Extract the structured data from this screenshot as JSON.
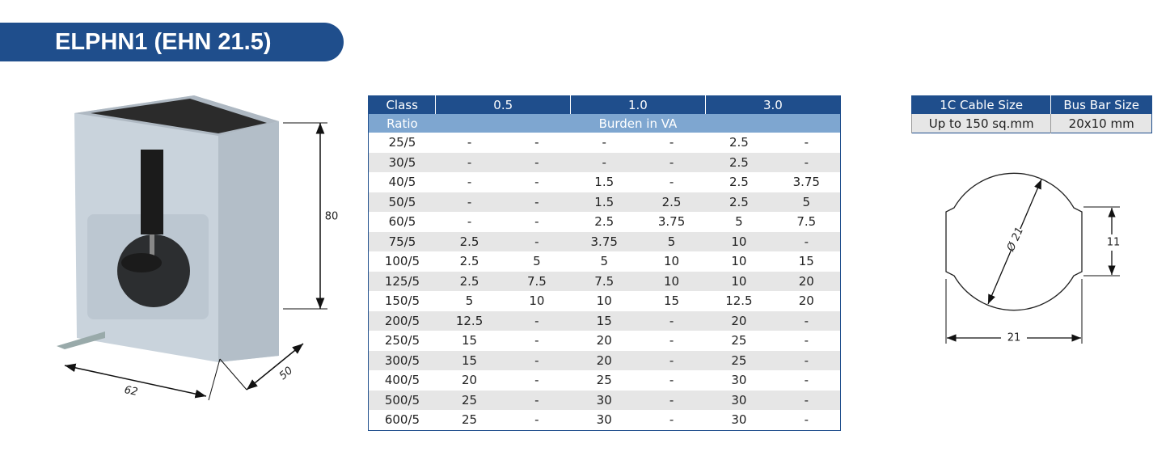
{
  "header": {
    "title": "ELPHN1 (EHN 21.5)"
  },
  "product": {
    "dimensions": {
      "height": "80",
      "width": "62",
      "depth": "50"
    }
  },
  "table": {
    "header": [
      "Class",
      "0.5",
      "1.0",
      "3.0"
    ],
    "subheader": [
      "Ratio",
      "Burden in VA"
    ],
    "rows": [
      [
        "25/5",
        "-",
        "-",
        "-",
        "-",
        "2.5",
        "-"
      ],
      [
        "30/5",
        "-",
        "-",
        "-",
        "-",
        "2.5",
        "-"
      ],
      [
        "40/5",
        "-",
        "-",
        "1.5",
        "-",
        "2.5",
        "3.75"
      ],
      [
        "50/5",
        "-",
        "-",
        "1.5",
        "2.5",
        "2.5",
        "5"
      ],
      [
        "60/5",
        "-",
        "-",
        "2.5",
        "3.75",
        "5",
        "7.5"
      ],
      [
        "75/5",
        "2.5",
        "-",
        "3.75",
        "5",
        "10",
        "-"
      ],
      [
        "100/5",
        "2.5",
        "5",
        "5",
        "10",
        "10",
        "15"
      ],
      [
        "125/5",
        "2.5",
        "7.5",
        "7.5",
        "10",
        "10",
        "20"
      ],
      [
        "150/5",
        "5",
        "10",
        "10",
        "15",
        "12.5",
        "20"
      ],
      [
        "200/5",
        "12.5",
        "-",
        "15",
        "-",
        "20",
        "-"
      ],
      [
        "250/5",
        "15",
        "-",
        "20",
        "-",
        "25",
        "-"
      ],
      [
        "300/5",
        "15",
        "-",
        "20",
        "-",
        "25",
        "-"
      ],
      [
        "400/5",
        "20",
        "-",
        "25",
        "-",
        "30",
        "-"
      ],
      [
        "500/5",
        "25",
        "-",
        "30",
        "-",
        "30",
        "-"
      ],
      [
        "600/5",
        "25",
        "-",
        "30",
        "-",
        "30",
        "-"
      ]
    ]
  },
  "size_table": {
    "header": [
      "1C Cable Size",
      "Bus Bar Size"
    ],
    "row": [
      "Up to 150 sq.mm",
      "20x10 mm"
    ]
  },
  "diagram": {
    "diameter": "Ø 21",
    "height": "11",
    "width": "21"
  }
}
